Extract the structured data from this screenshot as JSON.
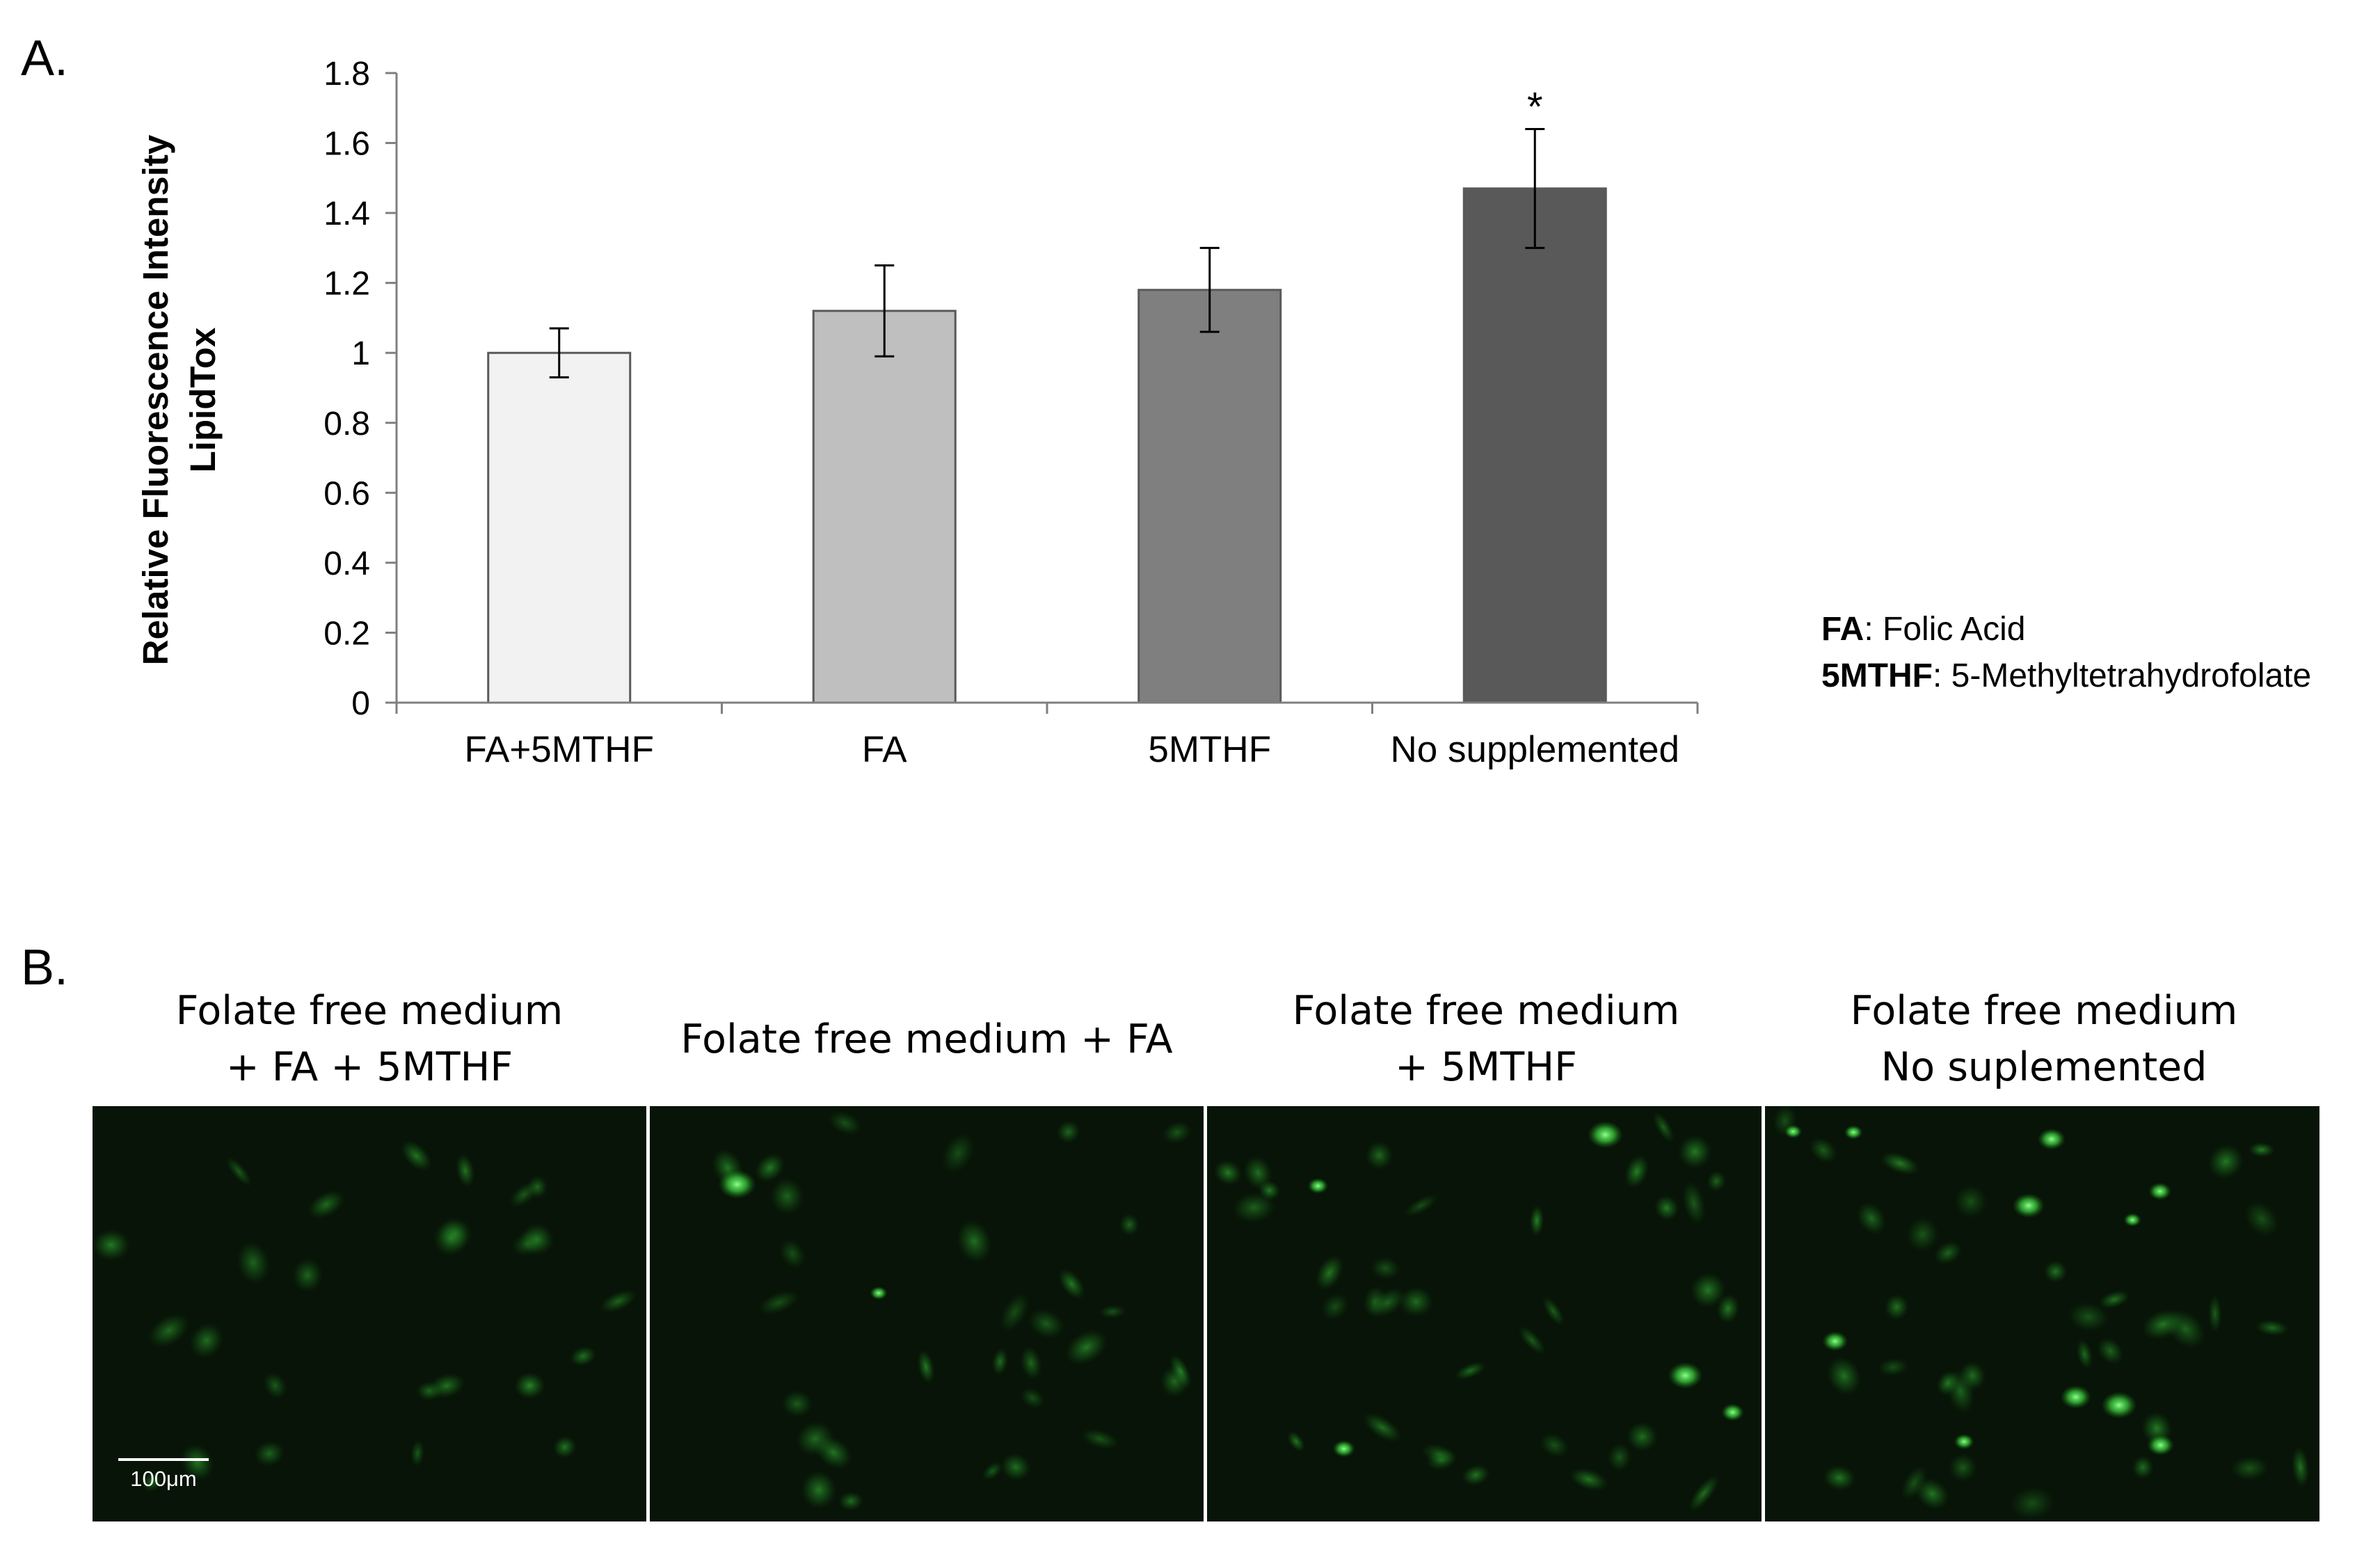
{
  "panels": {
    "a_label": "A.",
    "b_label": "B."
  },
  "chart_data": {
    "type": "bar",
    "categories": [
      "FA+5MTHF",
      "FA",
      "5MTHF",
      "No supplemented"
    ],
    "values": [
      1.0,
      1.12,
      1.18,
      1.47
    ],
    "errors": [
      0.07,
      0.13,
      0.12,
      0.17
    ],
    "bar_colors": [
      "#f2f2f2",
      "#bfbfbf",
      "#7f7f7f",
      "#595959"
    ],
    "significance": [
      "",
      "",
      "",
      "*"
    ],
    "ylabel_line1": "Relative Fluorescence Intensity",
    "ylabel_line2": "LipidTox",
    "ylim": [
      0,
      1.8
    ],
    "yticks": [
      "0",
      "0.2",
      "0.4",
      "0.6",
      "0.8",
      "1",
      "1.2",
      "1.4",
      "1.6",
      "1.8"
    ],
    "grid": false
  },
  "legend": {
    "items": [
      {
        "abbr": "FA",
        "desc": ": Folic Acid"
      },
      {
        "abbr": "5MTHF",
        "desc": ": 5-Methyltetrahydrofolate"
      }
    ]
  },
  "micrographs": {
    "captions": [
      [
        "Folate free medium",
        "+ FA + 5MTHF"
      ],
      [
        "Folate free medium + FA"
      ],
      [
        "Folate free medium",
        "+ 5MTHF"
      ],
      [
        "Folate free medium",
        "No suplemented"
      ]
    ],
    "scale_bar_label": "100μm",
    "background_color": "#071407",
    "cell_color": "#39c43a"
  }
}
